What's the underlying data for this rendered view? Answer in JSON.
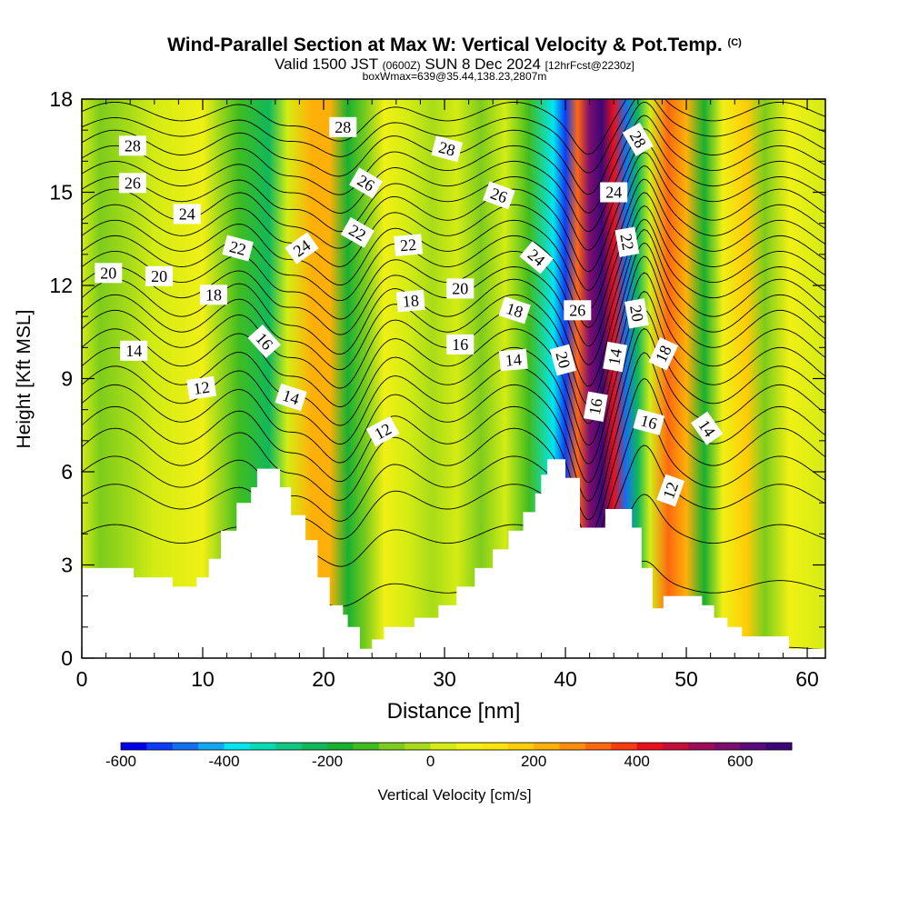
{
  "title": {
    "main": "Wind-Parallel Section at Max W: Vertical Velocity & Pot.Temp.",
    "copyright": "(C)",
    "valid_a": "Valid 1500 JST",
    "valid_z": "(0600Z)",
    "valid_b": "SUN 8 Dec 2024",
    "forecast": "[12hrFcst@2230z]",
    "box": "boxWmax=639@35.44,138.23,2807m"
  },
  "chart_data": {
    "type": "heatmap",
    "xlabel": "Distance [nm]",
    "ylabel": "Height [Kft MSL]",
    "xlim": [
      0,
      61.5
    ],
    "ylim": [
      0,
      18
    ],
    "x_ticks": [
      0,
      10,
      20,
      30,
      40,
      50,
      60
    ],
    "y_ticks": [
      0,
      3,
      6,
      9,
      12,
      15,
      18
    ],
    "colorbar": {
      "label": "Vertical Velocity [cm/s]",
      "min": -600,
      "max": 700,
      "step": 50,
      "tick_labels": [
        -600,
        -400,
        -200,
        0,
        200,
        400,
        600
      ],
      "colors": [
        "#0000f0",
        "#0c3cf8",
        "#1470f0",
        "#10a8f4",
        "#00e6f0",
        "#00dcb4",
        "#10c882",
        "#10b85a",
        "#18b030",
        "#40bc20",
        "#7ccc1c",
        "#a8dc18",
        "#d4ec14",
        "#f0f014",
        "#ffe40c",
        "#ffcc08",
        "#ffb008",
        "#ff8c0c",
        "#ff6810",
        "#f83c10",
        "#e8101c",
        "#c80c3c",
        "#a00c58",
        "#7c0c6e",
        "#5a0a7c",
        "#3c0878"
      ]
    },
    "vertical_velocity_bands": [
      {
        "x": 0,
        "w": 0
      },
      {
        "x": 1.5,
        "w": -60
      },
      {
        "x": 4,
        "w": -30
      },
      {
        "x": 6,
        "w": 20
      },
      {
        "x": 10,
        "w": 60
      },
      {
        "x": 13,
        "w": -120
      },
      {
        "x": 15.5,
        "w": -250
      },
      {
        "x": 17,
        "w": 20
      },
      {
        "x": 19,
        "w": 240
      },
      {
        "x": 20.5,
        "w": 200
      },
      {
        "x": 22,
        "w": -200
      },
      {
        "x": 23.5,
        "w": -60
      },
      {
        "x": 25,
        "w": 60
      },
      {
        "x": 27,
        "w": 30
      },
      {
        "x": 29,
        "w": -20
      },
      {
        "x": 31,
        "w": 0
      },
      {
        "x": 33,
        "w": -60
      },
      {
        "x": 35,
        "w": 20
      },
      {
        "x": 37,
        "w": -150
      },
      {
        "x": 39,
        "w": -380
      },
      {
        "x": 40,
        "w": -520
      },
      {
        "x": 41,
        "w": 300
      },
      {
        "x": 42,
        "w": 560
      },
      {
        "x": 43,
        "w": 650
      },
      {
        "x": 44,
        "w": 420
      },
      {
        "x": 45,
        "w": -480
      },
      {
        "x": 46,
        "w": -250
      },
      {
        "x": 47,
        "w": 0
      },
      {
        "x": 48.5,
        "w": 300
      },
      {
        "x": 50,
        "w": 200
      },
      {
        "x": 51.5,
        "w": -200
      },
      {
        "x": 53,
        "w": 50
      },
      {
        "x": 55,
        "w": 180
      },
      {
        "x": 56.5,
        "w": -100
      },
      {
        "x": 58.5,
        "w": 60
      },
      {
        "x": 61.5,
        "w": 0
      }
    ],
    "terrain": [
      [
        0,
        2.9
      ],
      [
        4.3,
        2.9
      ],
      [
        4.3,
        2.6
      ],
      [
        7.5,
        2.6
      ],
      [
        7.5,
        2.3
      ],
      [
        9.5,
        2.3
      ],
      [
        9.5,
        2.6
      ],
      [
        10.5,
        2.6
      ],
      [
        10.5,
        3.2
      ],
      [
        11.5,
        3.2
      ],
      [
        11.5,
        4.1
      ],
      [
        12.8,
        4.1
      ],
      [
        12.8,
        5.0
      ],
      [
        14,
        5.0
      ],
      [
        14,
        5.5
      ],
      [
        14.5,
        5.5
      ],
      [
        14.5,
        6.1
      ],
      [
        16.4,
        6.1
      ],
      [
        16.4,
        5.5
      ],
      [
        17.3,
        5.5
      ],
      [
        17.3,
        4.6
      ],
      [
        18.5,
        4.6
      ],
      [
        18.5,
        3.8
      ],
      [
        19.5,
        3.8
      ],
      [
        19.5,
        2.6
      ],
      [
        20.5,
        2.6
      ],
      [
        20.5,
        1.7
      ],
      [
        21.6,
        1.7
      ],
      [
        21.6,
        1.4
      ],
      [
        22,
        1.4
      ],
      [
        22,
        1.0
      ],
      [
        23,
        1.0
      ],
      [
        23,
        0.3
      ],
      [
        24,
        0.3
      ],
      [
        24,
        0.6
      ],
      [
        25,
        0.6
      ],
      [
        25,
        1.0
      ],
      [
        27.5,
        1.0
      ],
      [
        27.5,
        1.3
      ],
      [
        29.5,
        1.3
      ],
      [
        29.5,
        1.7
      ],
      [
        31,
        1.7
      ],
      [
        31,
        2.3
      ],
      [
        32.5,
        2.3
      ],
      [
        32.5,
        2.9
      ],
      [
        34,
        2.9
      ],
      [
        34,
        3.5
      ],
      [
        35.3,
        3.5
      ],
      [
        35.3,
        4.1
      ],
      [
        36.5,
        4.1
      ],
      [
        36.5,
        4.7
      ],
      [
        37.5,
        4.7
      ],
      [
        37.5,
        5.3
      ],
      [
        38,
        5.3
      ],
      [
        38,
        5.9
      ],
      [
        38.5,
        5.9
      ],
      [
        38.5,
        6.4
      ],
      [
        40,
        6.4
      ],
      [
        40,
        5.8
      ],
      [
        41.2,
        5.8
      ],
      [
        41.2,
        4.2
      ],
      [
        43.3,
        4.2
      ],
      [
        43.3,
        4.8
      ],
      [
        45.5,
        4.8
      ],
      [
        45.5,
        4.2
      ],
      [
        46.3,
        4.2
      ],
      [
        46.3,
        2.9
      ],
      [
        47.2,
        2.9
      ],
      [
        47.2,
        1.6
      ],
      [
        48.1,
        1.6
      ],
      [
        48.1,
        2.0
      ],
      [
        51.3,
        2.0
      ],
      [
        51.3,
        1.7
      ],
      [
        52.3,
        1.7
      ],
      [
        52.3,
        1.3
      ],
      [
        53.4,
        1.3
      ],
      [
        53.4,
        1.0
      ],
      [
        54.6,
        1.0
      ],
      [
        54.6,
        0.7
      ],
      [
        58.5,
        0.7
      ],
      [
        58.5,
        0.3
      ],
      [
        61.5,
        0.3
      ]
    ],
    "isentropes": [
      {
        "base": 0.3,
        "a1": 0.05,
        "a2": 0.2,
        "a3": 0.4
      },
      {
        "base": 2.3,
        "a1": 0.2,
        "a2": 0.6,
        "a3": 0.9
      },
      {
        "base": 4.0,
        "a1": 0.3,
        "a2": 1.0,
        "a3": 1.4
      },
      {
        "base": 5.2,
        "a1": 0.4,
        "a2": 1.3,
        "a3": 1.8
      },
      {
        "base": 6.0,
        "a1": 0.5,
        "a2": 1.5,
        "a3": 2.1
      },
      {
        "base": 6.8,
        "a1": 0.6,
        "a2": 1.6,
        "a3": 2.3
      },
      {
        "base": 7.5,
        "a1": 0.6,
        "a2": 1.7,
        "a3": 2.5
      },
      {
        "base": 8.2,
        "a1": 0.6,
        "a2": 1.8,
        "a3": 2.6
      },
      {
        "base": 8.8,
        "a1": 0.6,
        "a2": 1.8,
        "a3": 2.6
      },
      {
        "base": 9.4,
        "a1": 0.6,
        "a2": 1.8,
        "a3": 2.6
      },
      {
        "base": 10.0,
        "a1": 0.6,
        "a2": 1.8,
        "a3": 2.6
      },
      {
        "base": 10.6,
        "a1": 0.6,
        "a2": 1.8,
        "a3": 2.5
      },
      {
        "base": 11.1,
        "a1": 0.6,
        "a2": 1.7,
        "a3": 2.4
      },
      {
        "base": 11.6,
        "a1": 0.6,
        "a2": 1.7,
        "a3": 2.3
      },
      {
        "base": 12.1,
        "a1": 0.5,
        "a2": 1.6,
        "a3": 2.2
      },
      {
        "base": 12.6,
        "a1": 0.5,
        "a2": 1.6,
        "a3": 2.1
      },
      {
        "base": 13.1,
        "a1": 0.5,
        "a2": 1.5,
        "a3": 2.0
      },
      {
        "base": 13.6,
        "a1": 0.5,
        "a2": 1.5,
        "a3": 1.9
      },
      {
        "base": 14.1,
        "a1": 0.5,
        "a2": 1.4,
        "a3": 1.8
      },
      {
        "base": 14.6,
        "a1": 0.5,
        "a2": 1.3,
        "a3": 1.7
      },
      {
        "base": 15.1,
        "a1": 0.4,
        "a2": 1.3,
        "a3": 1.6
      },
      {
        "base": 15.6,
        "a1": 0.4,
        "a2": 1.2,
        "a3": 1.5
      },
      {
        "base": 16.1,
        "a1": 0.4,
        "a2": 1.1,
        "a3": 1.4
      },
      {
        "base": 16.6,
        "a1": 0.4,
        "a2": 1.0,
        "a3": 1.3
      },
      {
        "base": 17.1,
        "a1": 0.3,
        "a2": 0.9,
        "a3": 1.2
      },
      {
        "base": 17.6,
        "a1": 0.3,
        "a2": 0.9,
        "a3": 1.1
      }
    ],
    "contour_labels": [
      {
        "text": "28",
        "x": 4.2,
        "y": 16.5,
        "rot": 0
      },
      {
        "text": "26",
        "x": 4.2,
        "y": 15.3,
        "rot": 0
      },
      {
        "text": "24",
        "x": 8.7,
        "y": 14.3,
        "rot": 0
      },
      {
        "text": "22",
        "x": 12.9,
        "y": 13.2,
        "rot": 15
      },
      {
        "text": "20",
        "x": 2.2,
        "y": 12.4,
        "rot": 0
      },
      {
        "text": "20",
        "x": 6.4,
        "y": 12.3,
        "rot": 0
      },
      {
        "text": "18",
        "x": 10.9,
        "y": 11.7,
        "rot": 0
      },
      {
        "text": "14",
        "x": 4.3,
        "y": 9.9,
        "rot": 0
      },
      {
        "text": "12",
        "x": 9.9,
        "y": 8.7,
        "rot": -8
      },
      {
        "text": "16",
        "x": 15.1,
        "y": 10.2,
        "rot": 48
      },
      {
        "text": "14",
        "x": 17.3,
        "y": 8.4,
        "rot": 18
      },
      {
        "text": "24",
        "x": 18.2,
        "y": 13.2,
        "rot": -35
      },
      {
        "text": "28",
        "x": 21.6,
        "y": 17.1,
        "rot": 0
      },
      {
        "text": "26",
        "x": 23.5,
        "y": 15.3,
        "rot": 30
      },
      {
        "text": "22",
        "x": 22.8,
        "y": 13.7,
        "rot": 30
      },
      {
        "text": "22",
        "x": 27.0,
        "y": 13.3,
        "rot": -5
      },
      {
        "text": "18",
        "x": 27.2,
        "y": 11.5,
        "rot": -5
      },
      {
        "text": "12",
        "x": 24.9,
        "y": 7.3,
        "rot": -28
      },
      {
        "text": "28",
        "x": 30.2,
        "y": 16.4,
        "rot": 15
      },
      {
        "text": "26",
        "x": 34.5,
        "y": 14.9,
        "rot": 20
      },
      {
        "text": "20",
        "x": 31.3,
        "y": 11.9,
        "rot": 0
      },
      {
        "text": "16",
        "x": 31.3,
        "y": 10.1,
        "rot": 0
      },
      {
        "text": "18",
        "x": 35.8,
        "y": 11.2,
        "rot": 18
      },
      {
        "text": "14",
        "x": 35.7,
        "y": 9.6,
        "rot": -5
      },
      {
        "text": "24",
        "x": 37.6,
        "y": 12.9,
        "rot": 40
      },
      {
        "text": "26",
        "x": 41.0,
        "y": 11.2,
        "rot": 0
      },
      {
        "text": "20",
        "x": 39.8,
        "y": 9.6,
        "rot": 75
      },
      {
        "text": "16",
        "x": 42.5,
        "y": 8.1,
        "rot": -80
      },
      {
        "text": "14",
        "x": 44.1,
        "y": 9.7,
        "rot": -80
      },
      {
        "text": "28",
        "x": 46.0,
        "y": 16.7,
        "rot": 60
      },
      {
        "text": "24",
        "x": 44.0,
        "y": 15.0,
        "rot": 0
      },
      {
        "text": "22",
        "x": 45.1,
        "y": 13.4,
        "rot": 80
      },
      {
        "text": "20",
        "x": 45.9,
        "y": 11.1,
        "rot": 80
      },
      {
        "text": "18",
        "x": 48.1,
        "y": 9.8,
        "rot": -65
      },
      {
        "text": "16",
        "x": 46.9,
        "y": 7.6,
        "rot": 15
      },
      {
        "text": "14",
        "x": 51.7,
        "y": 7.4,
        "rot": 55
      },
      {
        "text": "12",
        "x": 48.7,
        "y": 5.4,
        "rot": -70
      }
    ]
  }
}
